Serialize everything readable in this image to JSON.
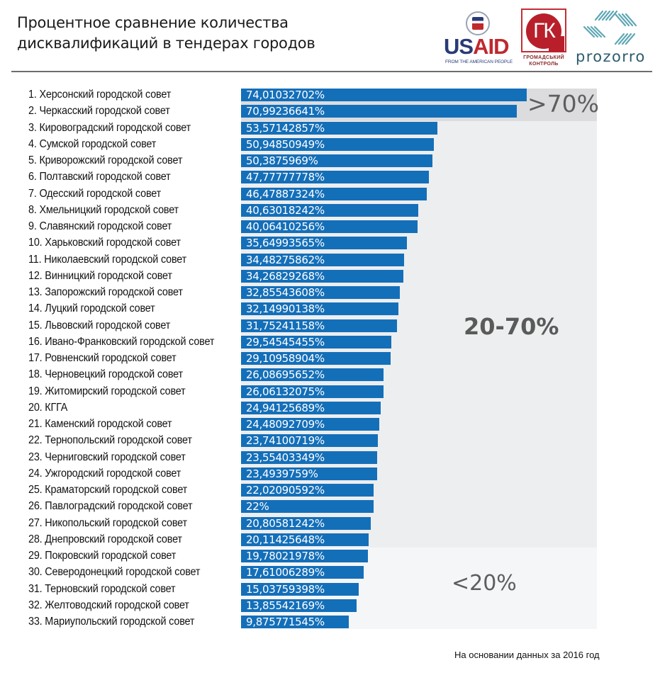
{
  "header": {
    "title_line1": "Процентное сравнение количества",
    "title_line2": "дисквалификаций в тендерах городов"
  },
  "logos": {
    "usaid": {
      "word_left": "US",
      "word_right": "AID",
      "tagline": "FROM THE AMERICAN PEOPLE"
    },
    "gk": {
      "mark": "ГК",
      "line1": "ГРОМАДСЬКИЙ",
      "line2": "КОНТРОЛЬ"
    },
    "prozorro": {
      "word": "prozorro"
    }
  },
  "colors": {
    "bar": "#146fb9",
    "zone_high": "#dcdcde",
    "zone_mid": "#edeeef",
    "zone_low": "#f5f6f7"
  },
  "footnote": "На основании данных за 2016 год",
  "chart_data": {
    "type": "bar",
    "orientation": "horizontal",
    "title": "Процентное сравнение количества дисквалификаций в тендерах городов",
    "xlabel": "",
    "ylabel": "",
    "unit": "%",
    "grid": false,
    "legend": null,
    "zones": [
      {
        "label": ">70%",
        "min": 70,
        "max": 100
      },
      {
        "label": "20-70%",
        "min": 20,
        "max": 70
      },
      {
        "label": "<20%",
        "min": 0,
        "max": 20
      }
    ],
    "categories": [
      "1. Херсонский городской совет",
      "2. Черкасский городской совет",
      "3. Кировоградский городской совет",
      "4. Сумской городской совет",
      "5. Криворожский городской совет",
      "6. Полтавский городской совет",
      "7. Одесский городской совет",
      "8. Хмельницкий городской совет",
      "9. Славянский городской совет",
      "10. Харьковский городской совет",
      "11. Николаевский городской совет",
      "12. Винницкий городской совет",
      "13. Запорожский городской совет",
      "14. Луцкий городской совет",
      "15. Львовский городской совет",
      "16. Ивано-Франковский городской совет",
      "17. Ровненский городской совет",
      "18. Черновецкий городской совет",
      "19. Житомирский городской совет",
      "20. КГГА",
      "21. Каменский городской совет",
      "22. Тернопольский городской совет",
      "23. Черниговский городской совет",
      "24. Ужгородский городской совет",
      "25. Краматорский городской совет",
      "26. Павлоградский городской совет",
      "27. Никопольский городской совет",
      "28. Днепровский городской совет",
      "29. Покровский городской совет",
      "30. Северодонецкий городской совет",
      "31. Терновский городской совет",
      "32. Желтоводский городской совет",
      "33. Мариупольский городской совет"
    ],
    "values": [
      74.01032702,
      70.99236641,
      53.57142857,
      50.94850949,
      50.3875969,
      47.77777778,
      46.47887324,
      40.63018242,
      40.06410256,
      35.64993565,
      34.48275862,
      34.26829268,
      32.85543608,
      32.14990138,
      31.75241158,
      29.54545455,
      29.10958904,
      26.08695652,
      26.06132075,
      24.94125689,
      24.48092709,
      23.74100719,
      23.55403349,
      23.4939759,
      22.02090592,
      22,
      20.80581242,
      20.11425648,
      19.78021978,
      17.61006289,
      15.03759398,
      13.85542169,
      9.875771545
    ],
    "value_labels": [
      "74,01032702%",
      "70,99236641%",
      "53,57142857%",
      "50,94850949%",
      "50,3875969%",
      "47,77777778%",
      "46,47887324%",
      "40,63018242%",
      "40,06410256%",
      "35,64993565%",
      "34,48275862%",
      "34,26829268%",
      "32,85543608%",
      "32,14990138%",
      "31,75241158%",
      "29,54545455%",
      "29,10958904%",
      "26,08695652%",
      "26,06132075%",
      "24,94125689%",
      "24,48092709%",
      "23,74100719%",
      "23,55403349%",
      "23,4939759%",
      "22,02090592%",
      "22%",
      "20,80581242%",
      "20,11425648%",
      "19,78021978%",
      "17,61006289%",
      "15,03759398%",
      "13,85542169%",
      "9,875771545%"
    ]
  }
}
